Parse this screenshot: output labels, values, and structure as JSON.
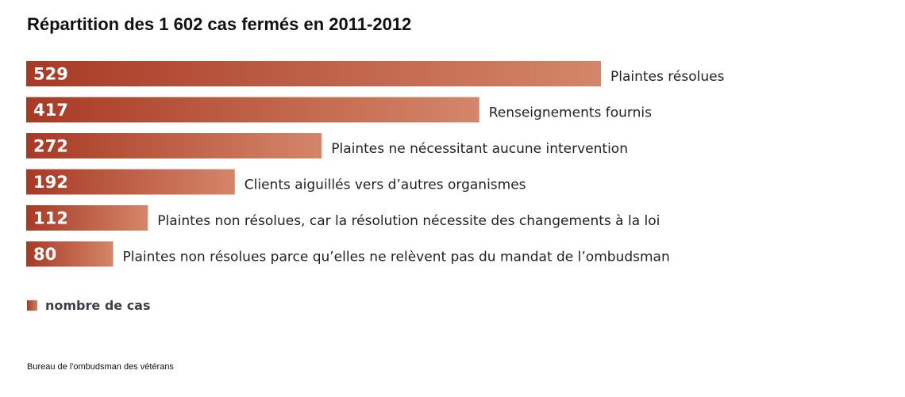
{
  "title": "Répartition des 1 602 cas fermés en 2011-2012",
  "legend": {
    "label": "nombre de cas"
  },
  "source": "Bureau de l'ombudsman des vétérans",
  "colors": {
    "bar_start": "#a83a25",
    "bar_end": "#d4866a"
  },
  "chart_data": {
    "type": "bar",
    "orientation": "horizontal",
    "categories": [
      "Plaintes résolues",
      "Renseignements fournis",
      "Plaintes ne nécessitant aucune intervention",
      "Clients aiguillés vers d’autres organismes",
      "Plaintes non résolues, car la résolution nécessite des changements à la loi",
      "Plaintes non résolues parce qu’elles ne relèvent pas du mandat de l’ombudsman"
    ],
    "values": [
      529,
      417,
      272,
      192,
      112,
      80
    ],
    "title": "Répartition des 1 602 cas fermés en 2011-2012",
    "legend": [
      "nombre de cas"
    ],
    "grid": false
  }
}
